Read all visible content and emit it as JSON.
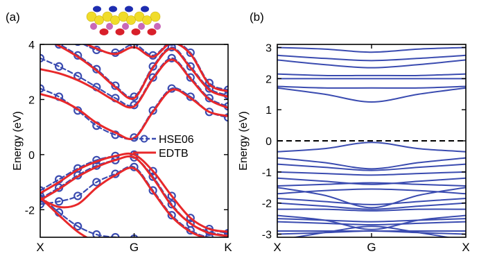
{
  "chart_data": [
    {
      "panel_label": "(a)",
      "type": "line",
      "ylabel": "Energy (eV)",
      "ylim": [
        -3,
        4
      ],
      "yticks": [
        -2,
        0,
        2,
        4
      ],
      "ytick_labels": [
        "-2",
        "0",
        "2",
        "4"
      ],
      "x_ticks": [
        "X",
        "G",
        "K"
      ],
      "grid": false,
      "legend": {
        "placement": "middle-right",
        "entries": [
          "HSE06",
          "EDTB"
        ]
      },
      "series": [
        {
          "name": "HSE06",
          "style": "dashed-with-circles",
          "color": "#3a4bb0",
          "bands": [
            {
              "x": [
                0,
                0.1,
                0.2,
                0.3,
                0.4,
                0.5,
                0.6,
                0.7,
                0.8,
                0.9,
                1
              ],
              "y": [
                2.4,
                2.1,
                1.6,
                1.05,
                0.72,
                0.62,
                1.6,
                2.4,
                2.1,
                1.55,
                1.35
              ]
            },
            {
              "x": [
                0,
                0.1,
                0.2,
                0.3,
                0.4,
                0.5,
                0.6,
                0.7,
                0.8,
                0.9,
                1
              ],
              "y": [
                3.5,
                3.2,
                2.85,
                2.45,
                2.05,
                1.8,
                2.8,
                3.5,
                2.8,
                2.05,
                1.75
              ]
            },
            {
              "x": [
                0,
                0.1,
                0.2,
                0.3,
                0.4,
                0.5,
                0.6,
                0.7,
                0.8,
                0.9,
                1
              ],
              "y": [
                4.2,
                4.0,
                3.6,
                3.1,
                2.5,
                2.1,
                3.2,
                3.9,
                3.2,
                2.4,
                2.15
              ]
            },
            {
              "x": [
                0,
                0.1,
                0.2,
                0.3,
                0.4,
                0.5,
                0.6,
                0.7,
                0.8,
                0.9,
                1
              ],
              "y": [
                4.6,
                4.35,
                4.1,
                3.8,
                3.7,
                4.0,
                3.6,
                4.1,
                3.7,
                2.6,
                2.35
              ]
            },
            {
              "x": [
                0,
                0.1,
                0.2,
                0.3,
                0.4,
                0.5,
                0.6,
                0.7,
                0.8,
                0.9,
                1
              ],
              "y": [
                -1.3,
                -0.9,
                -0.5,
                -0.2,
                -0.05,
                0.0,
                -0.6,
                -1.5,
                -2.3,
                -2.7,
                -2.85
              ]
            },
            {
              "x": [
                0,
                0.1,
                0.2,
                0.3,
                0.4,
                0.5,
                0.6,
                0.7,
                0.8,
                0.9,
                1
              ],
              "y": [
                -1.6,
                -1.2,
                -0.75,
                -0.4,
                -0.2,
                -0.1,
                -0.8,
                -1.8,
                -2.5,
                -2.8,
                -2.95
              ]
            },
            {
              "x": [
                0,
                0.1,
                0.2,
                0.3,
                0.4,
                0.5,
                0.6,
                0.7,
                0.8,
                0.9,
                1
              ],
              "y": [
                -1.8,
                -1.7,
                -1.5,
                -1.0,
                -0.7,
                -0.45,
                -1.3,
                -2.2,
                -2.75,
                -3.0,
                -3.0
              ]
            },
            {
              "x": [
                0,
                0.1,
                0.2,
                0.3,
                0.4,
                0.5,
                0.6,
                0.7,
                0.8,
                0.9,
                1
              ],
              "y": [
                -1.5,
                -2.1,
                -2.6,
                -2.9,
                -3.0,
                -3.05,
                -3.2,
                -3.5,
                -3.6,
                -3.6,
                -3.6
              ]
            }
          ]
        },
        {
          "name": "EDTB",
          "style": "solid",
          "color": "#e8282a",
          "bands": [
            {
              "x": [
                0,
                0.1,
                0.2,
                0.3,
                0.4,
                0.5,
                0.6,
                0.7,
                0.8,
                0.9,
                1
              ],
              "y": [
                2.2,
                2.0,
                1.65,
                1.15,
                0.8,
                0.6,
                1.55,
                2.35,
                2.05,
                1.55,
                1.4
              ]
            },
            {
              "x": [
                0,
                0.1,
                0.2,
                0.3,
                0.4,
                0.5,
                0.6,
                0.7,
                0.8,
                0.9,
                1
              ],
              "y": [
                3.1,
                2.95,
                2.7,
                2.35,
                1.95,
                1.75,
                2.75,
                3.45,
                2.75,
                2.0,
                1.7
              ]
            },
            {
              "x": [
                0,
                0.1,
                0.2,
                0.3,
                0.4,
                0.5,
                0.6,
                0.7,
                0.8,
                0.9,
                1
              ],
              "y": [
                4.3,
                3.95,
                3.55,
                3.05,
                2.45,
                2.05,
                3.15,
                3.85,
                3.15,
                2.35,
                2.1
              ]
            },
            {
              "x": [
                0,
                0.1,
                0.2,
                0.3,
                0.4,
                0.5,
                0.6,
                0.7,
                0.8,
                0.9,
                1
              ],
              "y": [
                4.7,
                4.4,
                4.15,
                3.85,
                3.65,
                3.9,
                3.55,
                4.05,
                3.65,
                2.55,
                2.3
              ]
            },
            {
              "x": [
                0,
                0.1,
                0.2,
                0.3,
                0.4,
                0.5,
                0.6,
                0.7,
                0.8,
                0.9,
                1
              ],
              "y": [
                -1.4,
                -1.0,
                -0.55,
                -0.25,
                -0.05,
                0.0,
                -0.6,
                -1.5,
                -2.3,
                -2.7,
                -2.8
              ]
            },
            {
              "x": [
                0,
                0.1,
                0.2,
                0.3,
                0.4,
                0.5,
                0.6,
                0.7,
                0.8,
                0.9,
                1
              ],
              "y": [
                -1.65,
                -1.25,
                -0.8,
                -0.45,
                -0.2,
                -0.1,
                -0.85,
                -1.85,
                -2.5,
                -2.85,
                -2.95
              ]
            },
            {
              "x": [
                0,
                0.1,
                0.2,
                0.3,
                0.4,
                0.5,
                0.6,
                0.7,
                0.8,
                0.9,
                1
              ],
              "y": [
                -1.6,
                -1.9,
                -1.8,
                -1.2,
                -0.75,
                -0.5,
                -1.35,
                -2.25,
                -2.8,
                -3.05,
                -3.1
              ]
            },
            {
              "x": [
                0,
                0.1,
                0.2,
                0.3,
                0.4,
                0.5,
                0.6,
                0.7,
                0.8,
                0.9,
                1
              ],
              "y": [
                -1.55,
                -2.2,
                -2.8,
                -3.2,
                -3.5,
                -3.6,
                -3.7,
                -3.8,
                -3.8,
                -3.8,
                -3.8
              ]
            }
          ]
        }
      ]
    },
    {
      "panel_label": "(b)",
      "type": "line",
      "ylabel": "Energy (eV)",
      "ylim": [
        -3.1,
        3.1
      ],
      "yticks": [
        -3,
        -2,
        -1,
        0,
        1,
        2,
        3
      ],
      "ytick_labels": [
        "-3",
        "-2",
        "-1",
        "0",
        "1",
        "2",
        "3"
      ],
      "x_ticks": [
        "X",
        "G",
        "X"
      ],
      "grid": false,
      "fermi_level": {
        "y": 0,
        "style": "dashed",
        "color": "#000000"
      },
      "series": [
        {
          "style": "solid",
          "color": "#3a4bb0",
          "bands": [
            {
              "x": [
                0,
                0.25,
                0.5,
                0.75,
                1
              ],
              "y": [
                3.0,
                2.95,
                2.85,
                2.95,
                3.0
              ]
            },
            {
              "x": [
                0,
                0.25,
                0.5,
                0.75,
                1
              ],
              "y": [
                2.75,
                2.65,
                2.58,
                2.65,
                2.75
              ]
            },
            {
              "x": [
                0,
                0.25,
                0.5,
                0.75,
                1
              ],
              "y": [
                2.6,
                2.45,
                2.35,
                2.45,
                2.6
              ]
            },
            {
              "x": [
                0,
                0.25,
                0.5,
                0.75,
                1
              ],
              "y": [
                2.15,
                2.1,
                2.1,
                2.1,
                2.15
              ]
            },
            {
              "x": [
                0,
                0.25,
                0.5,
                0.75,
                1
              ],
              "y": [
                2.0,
                2.0,
                2.0,
                2.0,
                2.0
              ]
            },
            {
              "x": [
                0,
                0.25,
                0.5,
                0.75,
                1
              ],
              "y": [
                1.75,
                1.7,
                1.7,
                1.7,
                1.75
              ]
            },
            {
              "x": [
                0,
                0.25,
                0.5,
                0.75,
                1
              ],
              "y": [
                1.7,
                1.5,
                1.25,
                1.5,
                1.7
              ]
            },
            {
              "x": [
                0,
                0.25,
                0.5,
                0.75,
                1
              ],
              "y": [
                -0.35,
                -0.25,
                -0.05,
                -0.25,
                -0.35
              ]
            },
            {
              "x": [
                0,
                0.25,
                0.5,
                0.75,
                1
              ],
              "y": [
                -0.55,
                -0.7,
                -0.9,
                -0.7,
                -0.55
              ]
            },
            {
              "x": [
                0,
                0.25,
                0.5,
                0.75,
                1
              ],
              "y": [
                -0.75,
                -0.85,
                -0.95,
                -0.85,
                -0.75
              ]
            },
            {
              "x": [
                0,
                0.25,
                0.5,
                0.75,
                1
              ],
              "y": [
                -1.0,
                -1.05,
                -1.1,
                -1.05,
                -1.0
              ]
            },
            {
              "x": [
                0,
                0.25,
                0.5,
                0.75,
                1
              ],
              "y": [
                -1.2,
                -1.3,
                -1.4,
                -1.3,
                -1.2
              ]
            },
            {
              "x": [
                0,
                0.25,
                0.5,
                0.75,
                1
              ],
              "y": [
                -1.45,
                -1.4,
                -1.35,
                -1.4,
                -1.45
              ]
            },
            {
              "x": [
                0,
                0.25,
                0.5,
                0.75,
                1
              ],
              "y": [
                -1.5,
                -1.75,
                -2.15,
                -1.75,
                -1.5
              ]
            },
            {
              "x": [
                0,
                0.25,
                0.5,
                0.75,
                1
              ],
              "y": [
                -1.7,
                -1.6,
                -1.55,
                -1.6,
                -1.7
              ]
            },
            {
              "x": [
                0,
                0.25,
                0.5,
                0.75,
                1
              ],
              "y": [
                -1.85,
                -1.95,
                -2.05,
                -1.95,
                -1.85
              ]
            },
            {
              "x": [
                0,
                0.25,
                0.5,
                0.75,
                1
              ],
              "y": [
                -2.0,
                -2.1,
                -2.2,
                -2.1,
                -2.0
              ]
            },
            {
              "x": [
                0,
                0.25,
                0.5,
                0.75,
                1
              ],
              "y": [
                -2.2,
                -2.2,
                -2.25,
                -2.2,
                -2.2
              ]
            },
            {
              "x": [
                0,
                0.25,
                0.5,
                0.75,
                1
              ],
              "y": [
                -2.5,
                -2.55,
                -2.6,
                -2.55,
                -2.5
              ]
            },
            {
              "x": [
                0,
                0.25,
                0.5,
                0.75,
                1
              ],
              "y": [
                -2.6,
                -2.65,
                -2.7,
                -2.65,
                -2.6
              ]
            },
            {
              "x": [
                0,
                0.25,
                0.5,
                0.75,
                1
              ],
              "y": [
                -2.9,
                -2.9,
                -2.9,
                -2.9,
                -2.9
              ]
            },
            {
              "x": [
                0,
                0.25,
                0.5,
                0.75,
                1
              ],
              "y": [
                -3.0,
                -2.95,
                -2.9,
                -2.95,
                -3.0
              ]
            },
            {
              "x": [
                0,
                0.25,
                0.5,
                0.75,
                1
              ],
              "y": [
                -2.4,
                -2.55,
                -2.85,
                -2.55,
                -2.4
              ]
            },
            {
              "x": [
                0,
                0.25,
                0.5,
                0.75,
                1
              ],
              "y": [
                -3.2,
                -2.95,
                -2.75,
                -2.95,
                -3.2
              ]
            }
          ]
        }
      ]
    }
  ]
}
